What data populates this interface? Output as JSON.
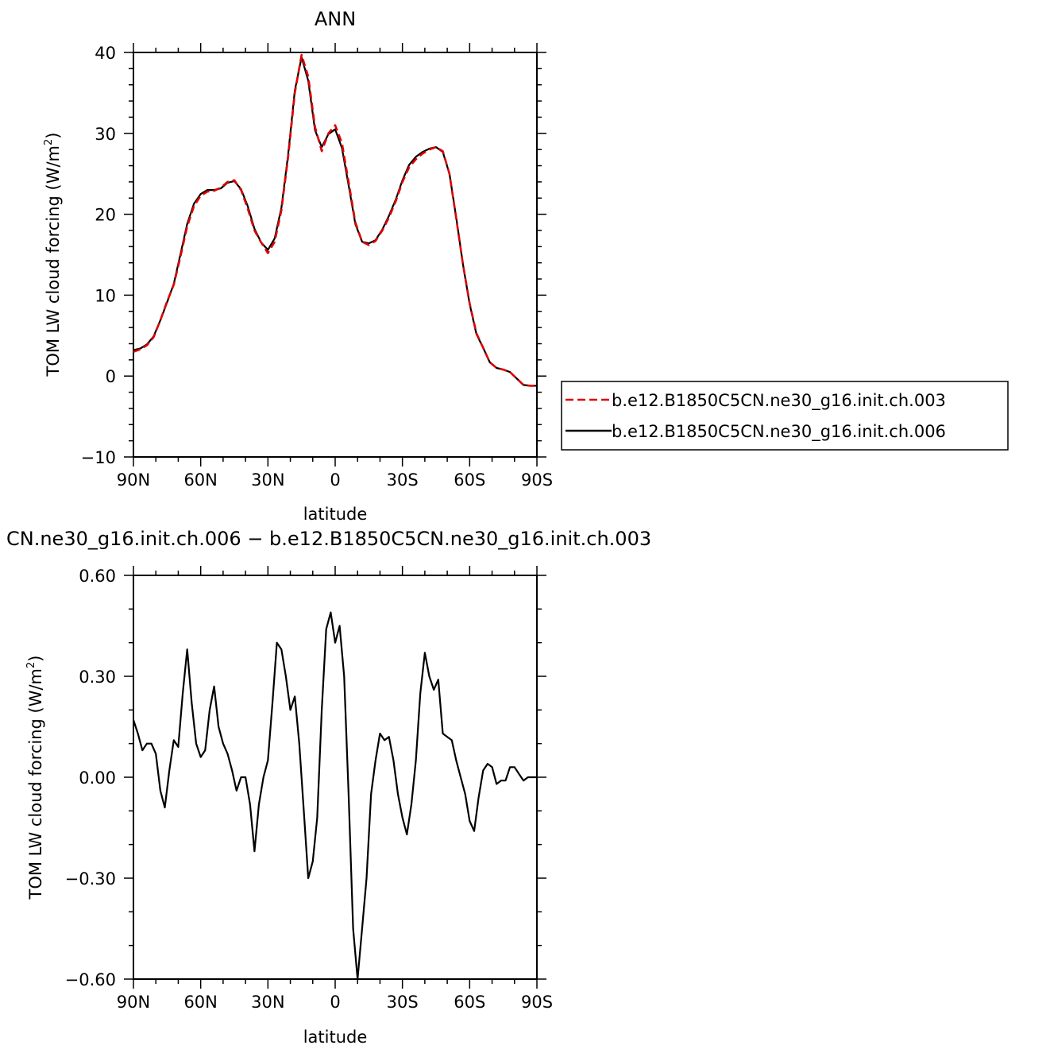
{
  "chart_data": [
    {
      "type": "line",
      "title": "ANN",
      "xlabel": "latitude",
      "ylabel_main": "TOM LW cloud forcing (W/m",
      "ylabel_sup": "2",
      "ylabel_tail": ")",
      "xlim": [
        90,
        -90
      ],
      "ylim": [
        -10,
        40
      ],
      "xtick_values": [
        90,
        60,
        30,
        0,
        -30,
        -60,
        -90
      ],
      "xtick_labels": [
        "90N",
        "60N",
        "30N",
        "0",
        "30S",
        "60S",
        "90S"
      ],
      "ytick_values": [
        -10,
        0,
        10,
        20,
        30,
        40
      ],
      "ytick_labels": [
        "−10",
        "0",
        "10",
        "20",
        "30",
        "40"
      ],
      "legend_position": "right",
      "series": [
        {
          "name": "b.e12.B1850C5CN.ne30_g16.init.ch.003",
          "color": "#e00000",
          "dash": "dashed",
          "x": [
            90,
            87,
            84,
            81,
            78,
            75,
            72,
            69,
            66,
            63,
            60,
            57,
            54,
            51,
            48,
            45,
            42,
            39,
            36,
            33,
            30,
            27,
            24,
            21,
            18,
            15,
            12,
            9,
            6,
            3,
            0,
            -3,
            -6,
            -9,
            -12,
            -15,
            -18,
            -21,
            -24,
            -27,
            -30,
            -33,
            -36,
            -39,
            -42,
            -45,
            -48,
            -51,
            -54,
            -57,
            -60,
            -63,
            -66,
            -69,
            -72,
            -75,
            -78,
            -81,
            -84,
            -87,
            -90
          ],
          "y": [
            3.0,
            3.3,
            3.8,
            4.8,
            6.9,
            9.2,
            11.3,
            14.8,
            18.5,
            21.0,
            22.3,
            22.8,
            22.9,
            23.3,
            24.0,
            24.2,
            23.0,
            20.7,
            18.0,
            16.5,
            15.2,
            16.6,
            20.5,
            27.0,
            35.0,
            39.7,
            37.0,
            30.8,
            27.8,
            30.0,
            31.0,
            28.8,
            24.0,
            19.0,
            16.6,
            16.2,
            16.7,
            18.0,
            19.6,
            21.6,
            24.0,
            25.8,
            26.8,
            27.5,
            28.0,
            28.3,
            27.8,
            25.0,
            19.5,
            13.8,
            9.0,
            5.3,
            3.5,
            1.7,
            1.0,
            0.8,
            0.5,
            -0.3,
            -1.1,
            -1.2,
            -1.2
          ]
        },
        {
          "name": "b.e12.B1850C5CN.ne30_g16.init.ch.006",
          "color": "#000000",
          "dash": "solid",
          "x": [
            90,
            87,
            84,
            81,
            78,
            75,
            72,
            69,
            66,
            63,
            60,
            57,
            54,
            51,
            48,
            45,
            42,
            39,
            36,
            33,
            30,
            27,
            24,
            21,
            18,
            15,
            12,
            9,
            6,
            3,
            0,
            -3,
            -6,
            -9,
            -12,
            -15,
            -18,
            -21,
            -24,
            -27,
            -30,
            -33,
            -36,
            -39,
            -42,
            -45,
            -48,
            -51,
            -54,
            -57,
            -60,
            -63,
            -66,
            -69,
            -72,
            -75,
            -78,
            -81,
            -84,
            -87,
            -90
          ],
          "y": [
            3.2,
            3.4,
            3.9,
            4.9,
            6.9,
            9.1,
            11.4,
            15.1,
            18.8,
            21.3,
            22.5,
            23.0,
            23.0,
            23.2,
            23.9,
            24.1,
            23.1,
            21.0,
            18.2,
            16.5,
            15.6,
            17.0,
            20.8,
            27.3,
            35.3,
            39.4,
            36.5,
            30.4,
            28.3,
            29.9,
            30.5,
            28.2,
            23.6,
            18.8,
            16.6,
            16.4,
            16.8,
            18.1,
            19.8,
            21.8,
            24.2,
            26.1,
            27.1,
            27.7,
            28.1,
            28.3,
            27.7,
            25.0,
            19.6,
            13.8,
            8.9,
            5.2,
            3.5,
            1.7,
            1.0,
            0.8,
            0.5,
            -0.3,
            -1.1,
            -1.2,
            -1.2
          ]
        }
      ]
    },
    {
      "type": "line",
      "title": "CN.ne30_g16.init.ch.006 − b.e12.B1850C5CN.ne30_g16.init.ch.003",
      "xlabel": "latitude",
      "ylabel_main": "TOM LW cloud forcing (W/m",
      "ylabel_sup": "2",
      "ylabel_tail": ")",
      "xlim": [
        90,
        -90
      ],
      "ylim": [
        -0.6,
        0.6
      ],
      "xtick_values": [
        90,
        60,
        30,
        0,
        -30,
        -60,
        -90
      ],
      "xtick_labels": [
        "90N",
        "60N",
        "30N",
        "0",
        "30S",
        "60S",
        "90S"
      ],
      "ytick_values": [
        -0.6,
        -0.3,
        0.0,
        0.3,
        0.6
      ],
      "ytick_labels": [
        "−0.60",
        "−0.30",
        "0.00",
        "0.30",
        "0.60"
      ],
      "series": [
        {
          "name": "",
          "color": "#000000",
          "dash": "solid",
          "x": [
            90,
            88,
            86,
            84,
            82,
            80,
            78,
            76,
            74,
            72,
            70,
            68,
            66,
            64,
            62,
            60,
            58,
            56,
            54,
            52,
            50,
            48,
            46,
            44,
            42,
            40,
            38,
            36,
            34,
            32,
            30,
            28,
            26,
            24,
            22,
            20,
            18,
            16,
            14,
            12,
            10,
            8,
            6,
            4,
            2,
            0,
            -2,
            -4,
            -6,
            -8,
            -10,
            -12,
            -14,
            -16,
            -18,
            -20,
            -22,
            -24,
            -26,
            -28,
            -30,
            -32,
            -34,
            -36,
            -38,
            -40,
            -42,
            -44,
            -46,
            -48,
            -50,
            -52,
            -54,
            -56,
            -58,
            -60,
            -62,
            -64,
            -66,
            -68,
            -70,
            -72,
            -74,
            -76,
            -78,
            -80,
            -82,
            -84,
            -86,
            -88,
            -90
          ],
          "y": [
            0.17,
            0.13,
            0.08,
            0.1,
            0.1,
            0.07,
            -0.04,
            -0.09,
            0.02,
            0.11,
            0.09,
            0.25,
            0.38,
            0.22,
            0.1,
            0.06,
            0.08,
            0.2,
            0.27,
            0.15,
            0.1,
            0.07,
            0.02,
            -0.04,
            0.0,
            0.0,
            -0.08,
            -0.22,
            -0.08,
            0.0,
            0.05,
            0.22,
            0.4,
            0.38,
            0.3,
            0.2,
            0.24,
            0.1,
            -0.1,
            -0.3,
            -0.25,
            -0.12,
            0.2,
            0.44,
            0.49,
            0.4,
            0.45,
            0.3,
            -0.05,
            -0.45,
            -0.6,
            -0.45,
            -0.3,
            -0.05,
            0.05,
            0.13,
            0.11,
            0.12,
            0.05,
            -0.05,
            -0.12,
            -0.17,
            -0.08,
            0.05,
            0.25,
            0.37,
            0.3,
            0.26,
            0.29,
            0.13,
            0.12,
            0.11,
            0.05,
            0.0,
            -0.05,
            -0.13,
            -0.16,
            -0.06,
            0.02,
            0.04,
            0.03,
            -0.02,
            -0.01,
            -0.01,
            0.03,
            0.03,
            0.01,
            -0.01,
            0.0,
            0.0,
            0.0
          ]
        }
      ]
    }
  ]
}
